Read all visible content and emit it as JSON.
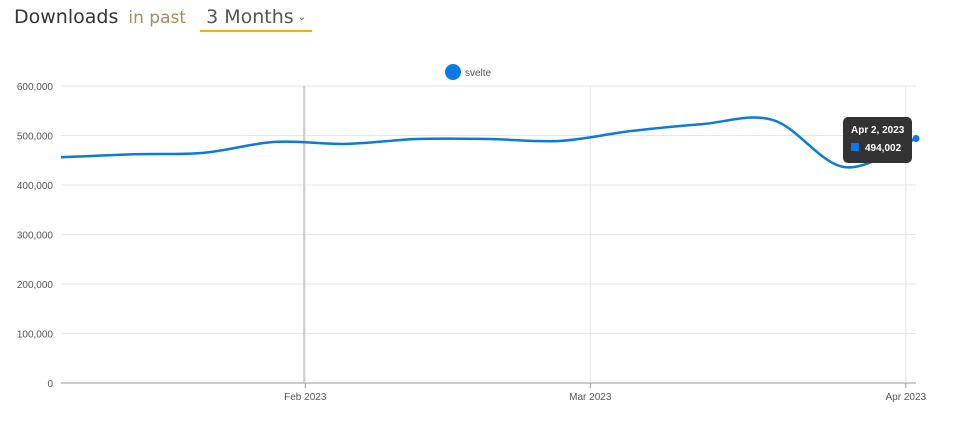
{
  "header": {
    "title": "Downloads",
    "connector": "in past",
    "range": "3 Months"
  },
  "colors": {
    "series": "#0b79e3"
  },
  "tooltip": {
    "date": "Apr 2, 2023",
    "value": "494,002"
  },
  "chart_data": {
    "type": "line",
    "title": "",
    "legend": [
      "svelte"
    ],
    "legend_position": "top-center",
    "x": [
      "2023-01-08",
      "2023-01-15",
      "2023-01-22",
      "2023-01-29",
      "2023-02-05",
      "2023-02-12",
      "2023-02-19",
      "2023-02-26",
      "2023-03-05",
      "2023-03-12",
      "2023-03-19",
      "2023-03-26",
      "2023-04-02"
    ],
    "series": [
      {
        "name": "svelte",
        "values": [
          456000,
          462000,
          465000,
          487000,
          483000,
          493000,
          493000,
          489000,
          509000,
          523000,
          531000,
          436000,
          494002
        ]
      }
    ],
    "ylim": [
      0,
      600000
    ],
    "yticks": [
      "0",
      "100,000",
      "200,000",
      "300,000",
      "400,000",
      "500,000",
      "600,000"
    ],
    "xticks": [
      {
        "label": "Feb 2023",
        "date": "2023-02-01"
      },
      {
        "label": "Mar 2023",
        "date": "2023-03-01"
      },
      {
        "label": "Apr 2023",
        "date": "2023-04-01"
      }
    ],
    "grid": true
  }
}
